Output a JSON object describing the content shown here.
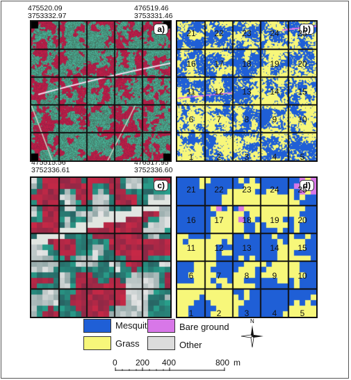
{
  "coords": {
    "a_top_left": [
      "475520.09",
      "3753332.97"
    ],
    "a_top_right": [
      "476519.46",
      "3753331.46"
    ],
    "a_bottom_left": [
      "475515.56",
      "3752336.61"
    ],
    "a_bottom_right": [
      "476517.95",
      "3752336.60"
    ]
  },
  "panels": {
    "a": "a)",
    "b": "b)",
    "c": "c)",
    "d": "d)"
  },
  "cell_numbers": [
    "21",
    "22",
    "23",
    "24",
    "25",
    "16",
    "17",
    "18",
    "19",
    "20",
    "11",
    "12",
    "13",
    "14",
    "15",
    "6",
    "7",
    "8",
    "9",
    "10",
    "1",
    "2",
    "3",
    "4",
    "5"
  ],
  "legend": {
    "mesquite": "Mesquite",
    "bare_ground": "Bare ground",
    "grass": "Grass",
    "other": "Other"
  },
  "colors": {
    "mesquite": "#1f5fd6",
    "bare_ground": "#d877e8",
    "grass": "#f7f77a",
    "other": "#dcdcdc"
  },
  "north_label": "N",
  "scale": {
    "ticks": [
      "0",
      "200",
      "400",
      "800"
    ],
    "unit": "m"
  }
}
